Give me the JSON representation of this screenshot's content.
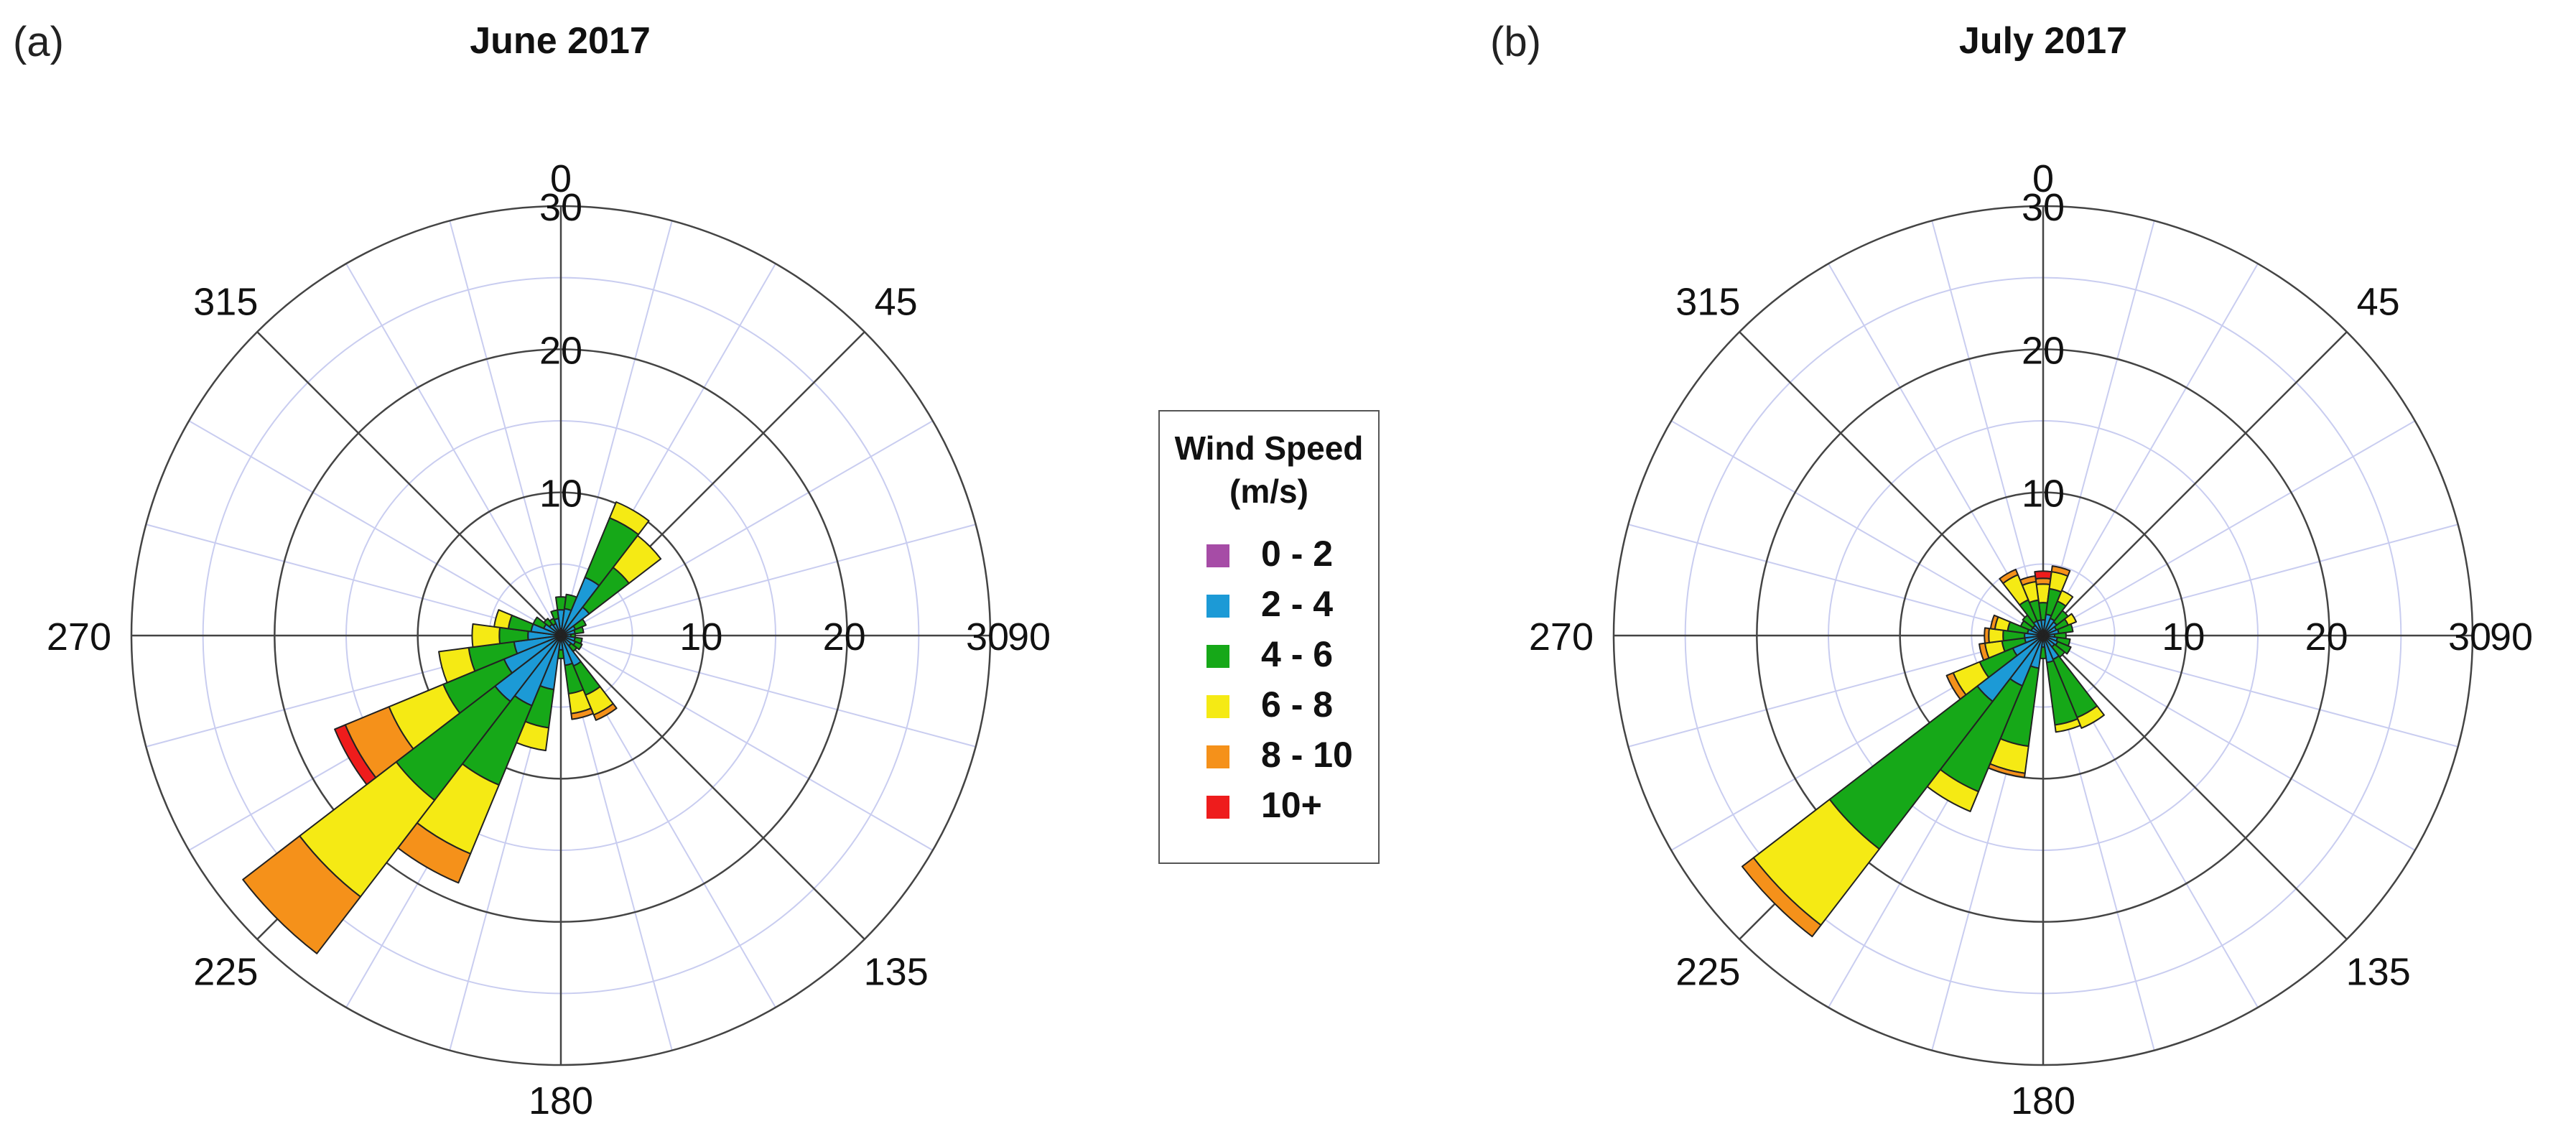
{
  "chart_data": [
    {
      "type": "wind-rose",
      "panel_label": "(a)",
      "title": "June 2017",
      "radial_ticks": [
        10,
        20,
        30
      ],
      "radial_max": 30,
      "direction_labels": [
        {
          "angle": 0,
          "text": "0"
        },
        {
          "angle": 45,
          "text": "45"
        },
        {
          "angle": 90,
          "text": "90"
        },
        {
          "angle": 135,
          "text": "135"
        },
        {
          "angle": 180,
          "text": "180"
        },
        {
          "angle": 225,
          "text": "225"
        },
        {
          "angle": 270,
          "text": "270"
        },
        {
          "angle": 315,
          "text": "315"
        }
      ],
      "sector_width_deg": 15,
      "directions": [
        0,
        15,
        30,
        45,
        60,
        75,
        90,
        105,
        120,
        135,
        150,
        165,
        180,
        195,
        210,
        225,
        240,
        255,
        270,
        285,
        300,
        315,
        330,
        345
      ],
      "values": [
        [
          0.5,
          1.3,
          0.9,
          0,
          0,
          0
        ],
        [
          0.4,
          1.5,
          1.0,
          0,
          0,
          0
        ],
        [
          0.4,
          4.0,
          4.5,
          1.2,
          0,
          0
        ],
        [
          0.3,
          2.2,
          3.5,
          2.8,
          0,
          0
        ],
        [
          0.3,
          0.8,
          0.8,
          0,
          0,
          0
        ],
        [
          0.3,
          0.7,
          0.6,
          0,
          0,
          0
        ],
        [
          0.2,
          0.5,
          0.3,
          0,
          0,
          0
        ],
        [
          0.3,
          0.7,
          0.5,
          0,
          0,
          0
        ],
        [
          0.3,
          0.8,
          0.5,
          0,
          0,
          0
        ],
        [
          0.3,
          0.6,
          0.5,
          0,
          0,
          0
        ],
        [
          0.3,
          2.0,
          2.2,
          1.5,
          0.4,
          0
        ],
        [
          0.3,
          1.8,
          2.0,
          1.4,
          0.4,
          0
        ],
        [
          0.2,
          0.8,
          0.6,
          0,
          0,
          0
        ],
        [
          0.3,
          3.5,
          2.7,
          1.6,
          0,
          0
        ],
        [
          0.3,
          5.0,
          6.0,
          5.2,
          2.2,
          0
        ],
        [
          0.3,
          5.5,
          8.7,
          8.5,
          5.0,
          0
        ],
        [
          0.3,
          4.0,
          4.6,
          4.1,
          3.3,
          0.8
        ],
        [
          0.3,
          3.0,
          3.2,
          2.1,
          0,
          0
        ],
        [
          0.3,
          2.0,
          2.0,
          1.9,
          0,
          0
        ],
        [
          0.3,
          1.8,
          1.6,
          1.0,
          0,
          0
        ],
        [
          0.3,
          1.0,
          0.8,
          0,
          0,
          0
        ],
        [
          0.3,
          0.7,
          0.5,
          0,
          0,
          0
        ],
        [
          0.3,
          0.6,
          0.4,
          0,
          0,
          0
        ],
        [
          0.4,
          0.8,
          0.6,
          0,
          0,
          0
        ]
      ]
    },
    {
      "type": "wind-rose",
      "panel_label": "(b)",
      "title": "July 2017",
      "radial_ticks": [
        10,
        20,
        30
      ],
      "radial_max": 30,
      "direction_labels": [
        {
          "angle": 0,
          "text": "0"
        },
        {
          "angle": 45,
          "text": "45"
        },
        {
          "angle": 90,
          "text": "90"
        },
        {
          "angle": 135,
          "text": "135"
        },
        {
          "angle": 180,
          "text": "180"
        },
        {
          "angle": 225,
          "text": "225"
        },
        {
          "angle": 270,
          "text": "270"
        },
        {
          "angle": 315,
          "text": "315"
        }
      ],
      "sector_width_deg": 15,
      "directions": [
        0,
        15,
        30,
        45,
        60,
        75,
        90,
        105,
        120,
        135,
        150,
        165,
        180,
        195,
        210,
        225,
        240,
        255,
        270,
        285,
        300,
        315,
        330,
        345
      ],
      "values": [
        [
          0.3,
          0.8,
          1.2,
          1.3,
          0.4,
          0.5
        ],
        [
          0.3,
          1.2,
          1.8,
          1.2,
          0.4,
          0
        ],
        [
          0.3,
          1.0,
          1.3,
          0.8,
          0,
          0
        ],
        [
          0.3,
          0.9,
          1.0,
          0,
          0,
          0
        ],
        [
          0.3,
          0.7,
          0.9,
          0.6,
          0,
          0
        ],
        [
          0.3,
          0.8,
          1.0,
          0,
          0,
          0
        ],
        [
          0.2,
          0.6,
          0.8,
          0,
          0,
          0
        ],
        [
          0.3,
          0.7,
          0.9,
          0,
          0,
          0
        ],
        [
          0.3,
          0.8,
          1.0,
          0,
          0,
          0
        ],
        [
          0.3,
          0.7,
          0.9,
          0,
          0,
          0
        ],
        [
          0.3,
          1.5,
          4.4,
          0.8,
          0,
          0
        ],
        [
          0.3,
          1.6,
          4.4,
          0.5,
          0,
          0
        ],
        [
          0.2,
          0.6,
          0.8,
          0,
          0,
          0
        ],
        [
          0.3,
          2.0,
          5.5,
          1.9,
          0.3,
          0
        ],
        [
          0.3,
          3.5,
          8.0,
          1.5,
          0,
          0
        ],
        [
          0.3,
          5.5,
          13.0,
          6.7,
          1.0,
          0
        ],
        [
          0.3,
          2.0,
          2.5,
          2.0,
          0.5,
          0
        ],
        [
          0.3,
          1.0,
          1.6,
          1.2,
          0.4,
          0
        ],
        [
          0.3,
          1.0,
          1.5,
          1.0,
          0.3,
          0
        ],
        [
          0.3,
          0.8,
          1.4,
          0.9,
          0.3,
          0
        ],
        [
          0.3,
          0.6,
          0.8,
          0,
          0,
          0
        ],
        [
          0.3,
          0.6,
          0.9,
          0,
          0,
          0
        ],
        [
          0.3,
          0.8,
          1.6,
          1.9,
          0.4,
          0
        ],
        [
          0.3,
          0.8,
          1.4,
          1.3,
          0.4,
          0
        ]
      ]
    }
  ],
  "legend": {
    "title_line1": "Wind Speed",
    "title_line2": "(m/s)",
    "placement": "center",
    "bins": [
      {
        "label": "0 - 2",
        "color": "#a64ca6"
      },
      {
        "label": "2 - 4",
        "color": "#1c9ad6"
      },
      {
        "label": "4 - 6",
        "color": "#16a818"
      },
      {
        "label": "6 - 8",
        "color": "#f5ea14"
      },
      {
        "label": "8 - 10",
        "color": "#f5911a"
      },
      {
        "label": "10+",
        "color": "#ee1c1c"
      }
    ]
  },
  "style": {
    "ring_color": "#444444",
    "minor_grid_color": "#c9cdf0",
    "spoke_color": "#444444",
    "bar_outline": "#222222"
  }
}
